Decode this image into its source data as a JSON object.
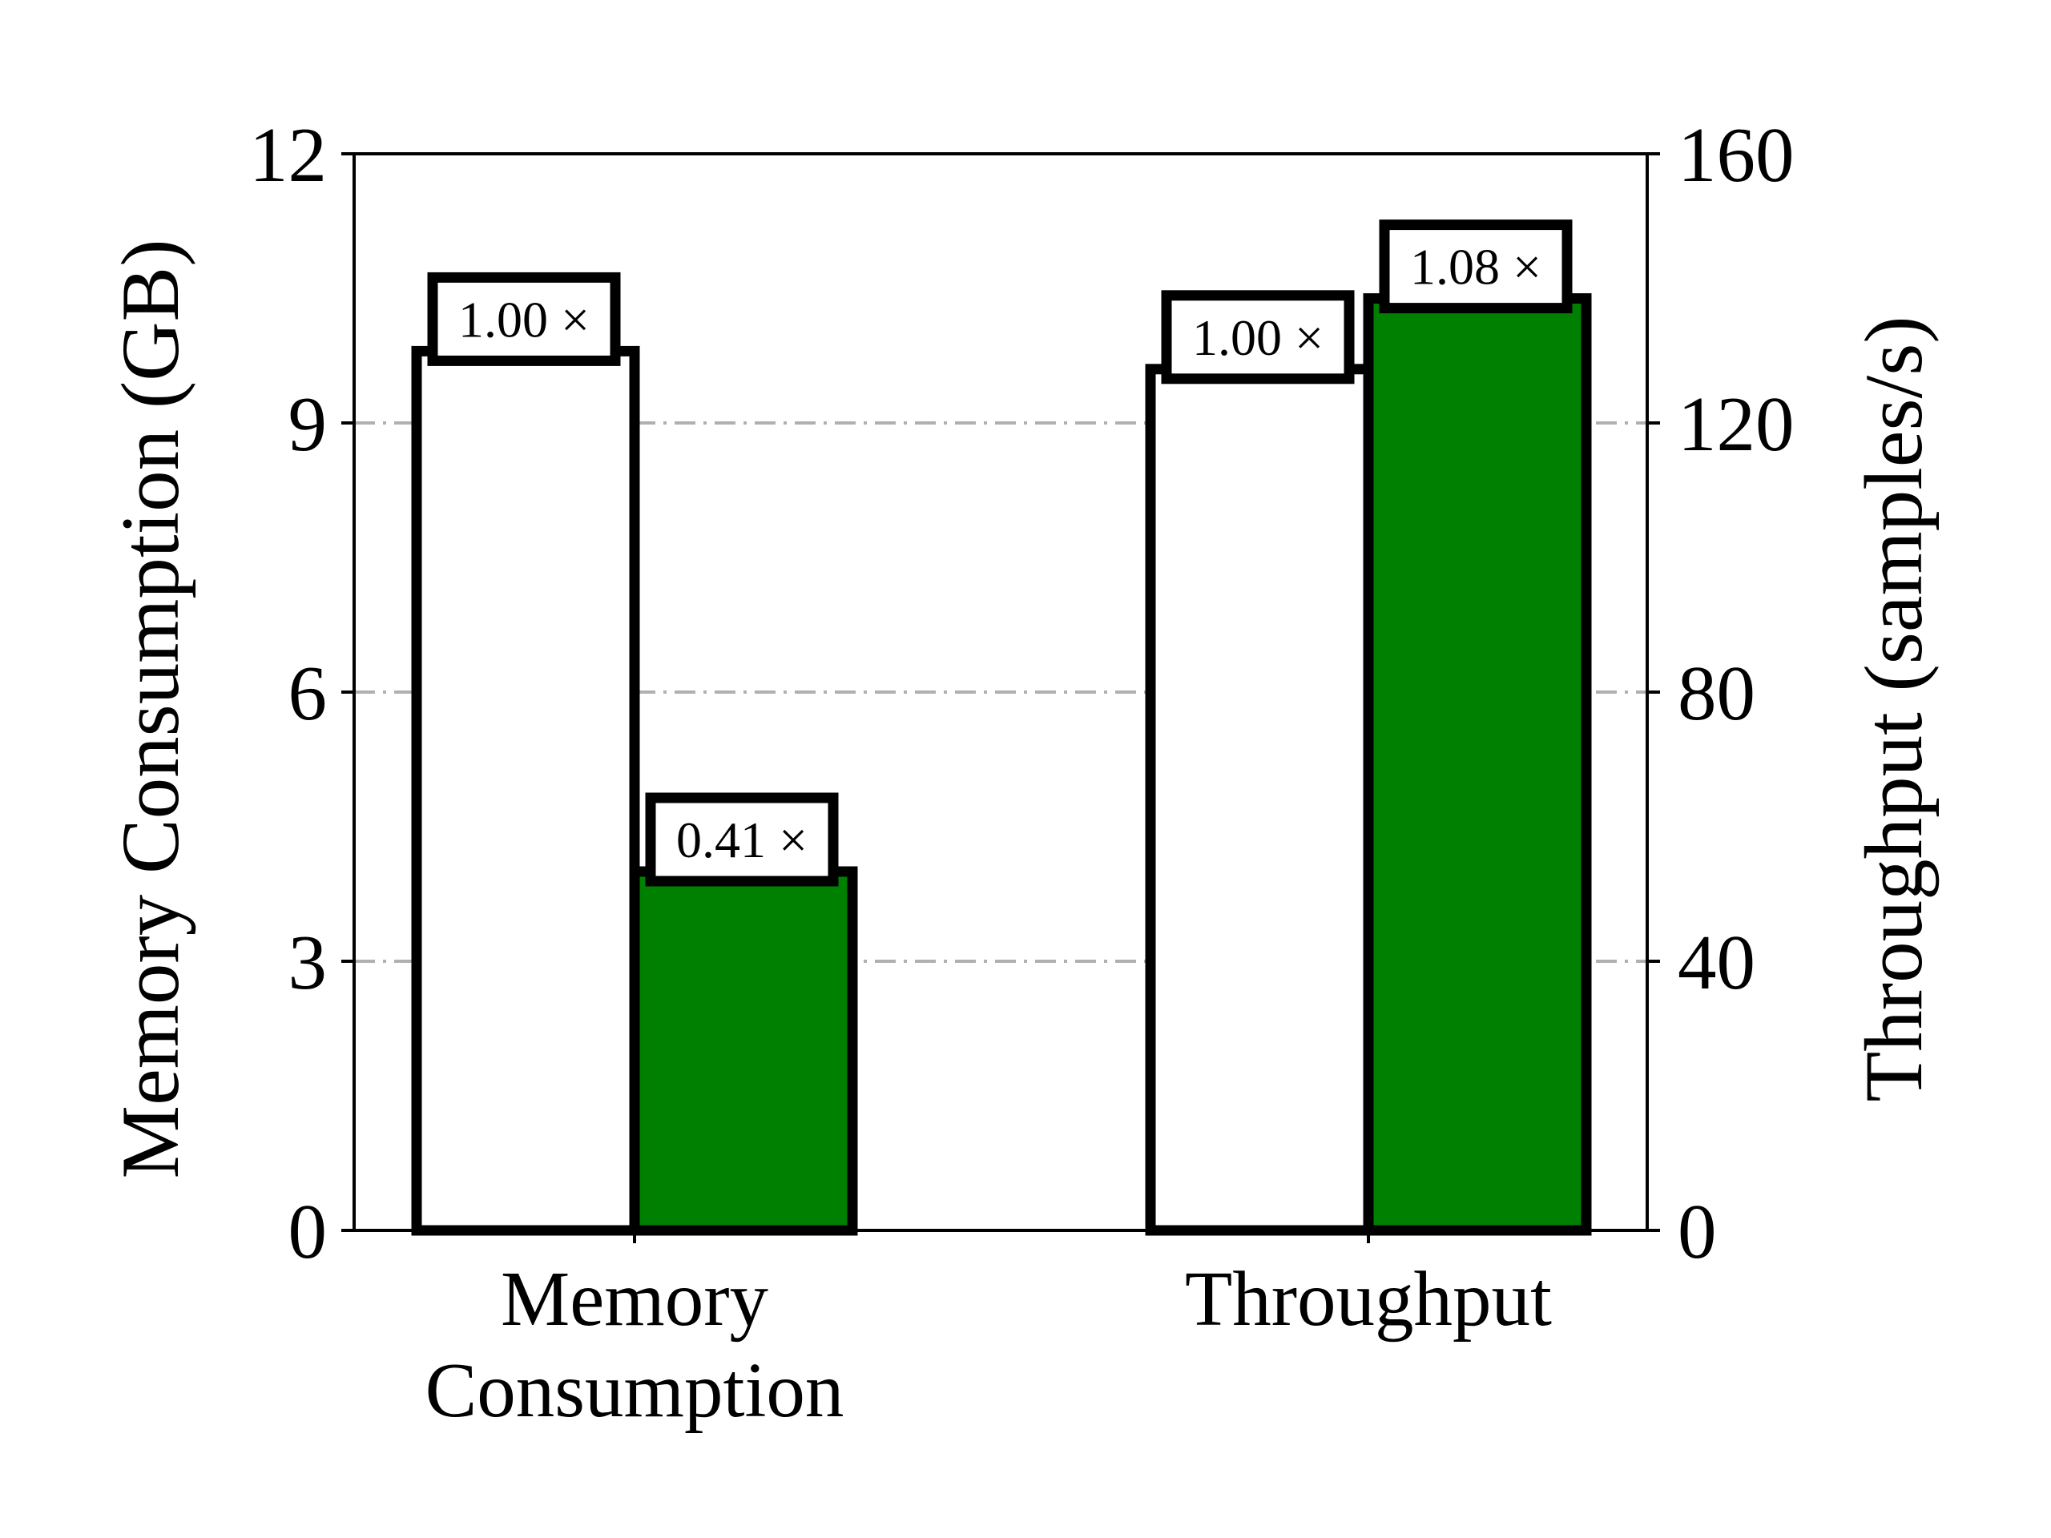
{
  "chart_data": {
    "type": "bar",
    "categories": [
      "Memory\nConsumption",
      "Throughput"
    ],
    "bar_colors": [
      "#ffffff",
      "#008000"
    ],
    "edge_color": "#000000",
    "grid_color": "#b0b0b0",
    "grid": "horizontal dash-dot",
    "left_axis": {
      "label": "Memory Consumption (GB)",
      "ylim": [
        0,
        12
      ],
      "ticks": [
        "0",
        "3",
        "6",
        "9",
        "12"
      ]
    },
    "right_axis": {
      "label": "Throughput (samples/s)",
      "ylim": [
        0,
        160
      ],
      "ticks": [
        "0",
        "40",
        "80",
        "120",
        "160"
      ]
    },
    "bars": [
      {
        "category": 0,
        "slot": 0,
        "axis": "left",
        "value": 9.8,
        "label": "1.00 ×"
      },
      {
        "category": 0,
        "slot": 1,
        "axis": "left",
        "value": 4.0,
        "label": "0.41 ×"
      },
      {
        "category": 1,
        "slot": 0,
        "axis": "right",
        "value": 128,
        "label": "1.00 ×"
      },
      {
        "category": 1,
        "slot": 1,
        "axis": "right",
        "value": 138.5,
        "label": "1.08 ×"
      }
    ]
  }
}
